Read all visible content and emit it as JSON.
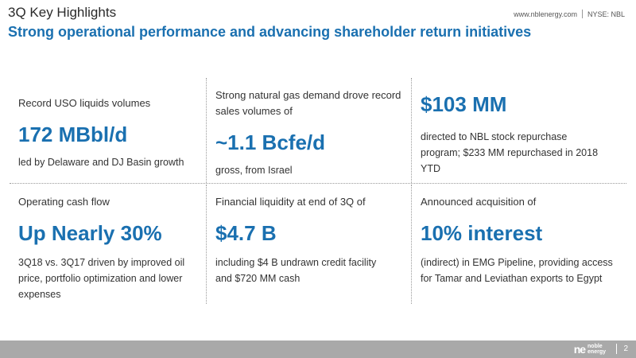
{
  "header": {
    "kicker": "3Q Key Highlights",
    "title": "Strong operational performance and advancing shareholder return initiatives",
    "website": "www.nblenergy.com",
    "ticker": "NYSE: NBL"
  },
  "highlights": [
    {
      "label": "Record USO liquids volumes",
      "value": "172 MBbl/d",
      "detail": "led by Delaware and DJ Basin growth"
    },
    {
      "label": "Strong natural gas demand drove record sales volumes of",
      "value": "~1.1 Bcfe/d",
      "detail": "gross, from Israel"
    },
    {
      "label": "",
      "value": "$103 MM",
      "detail": "directed to NBL stock repurchase program; $233 MM repurchased in 2018 YTD"
    },
    {
      "label": "Operating cash flow",
      "value": "Up Nearly 30%",
      "detail": "3Q18 vs. 3Q17 driven by improved oil price, portfolio optimization and lower expenses"
    },
    {
      "label": "Financial liquidity at end of 3Q of",
      "value": "$4.7 B",
      "detail": "including $4 B undrawn credit facility and $720 MM cash"
    },
    {
      "label": "Announced acquisition of",
      "value": "10% interest",
      "detail": "(indirect) in EMG Pipeline, providing access for Tamar and Leviathan exports to Egypt"
    }
  ],
  "footer": {
    "logo_mark": "ne",
    "logo_word_1": "noble",
    "logo_word_2": "energy",
    "page_number": "2"
  },
  "colors": {
    "accent": "#1a70b0",
    "footer": "#a9a9a9"
  }
}
